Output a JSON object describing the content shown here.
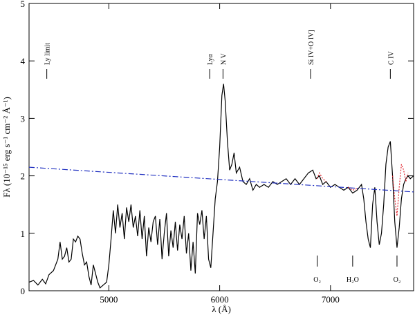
{
  "chart_data": {
    "type": "line",
    "xlabel": "λ (Å)",
    "ylabel": "Fλ (10⁻¹⁵ erg s⁻¹ cm⁻² Å⁻¹)",
    "xlim": [
      4280,
      7750
    ],
    "ylim": [
      0,
      5
    ],
    "xticks": [
      5000,
      6000,
      7000
    ],
    "yticks": [
      0,
      1,
      2,
      3,
      4,
      5
    ],
    "series": [
      {
        "color": "#000000",
        "style": "solid",
        "x": [
          4280,
          4320,
          4360,
          4400,
          4430,
          4460,
          4500,
          4520,
          4540,
          4560,
          4580,
          4600,
          4620,
          4640,
          4660,
          4680,
          4700,
          4720,
          4740,
          4760,
          4780,
          4800,
          4820,
          4840,
          4860,
          4880,
          4900,
          4920,
          4950,
          4980,
          5000,
          5020,
          5040,
          5060,
          5080,
          5100,
          5120,
          5140,
          5160,
          5180,
          5200,
          5220,
          5240,
          5260,
          5280,
          5300,
          5320,
          5340,
          5360,
          5380,
          5400,
          5420,
          5440,
          5460,
          5480,
          5500,
          5520,
          5540,
          5560,
          5580,
          5600,
          5620,
          5640,
          5660,
          5680,
          5700,
          5720,
          5740,
          5760,
          5780,
          5800,
          5820,
          5840,
          5860,
          5880,
          5900,
          5920,
          5940,
          5960,
          5980,
          6000,
          6020,
          6035,
          6050,
          6070,
          6090,
          6110,
          6130,
          6150,
          6180,
          6210,
          6240,
          6270,
          6300,
          6330,
          6360,
          6400,
          6440,
          6480,
          6520,
          6560,
          6600,
          6640,
          6680,
          6720,
          6760,
          6800,
          6840,
          6870,
          6900,
          6930,
          6960,
          7000,
          7040,
          7080,
          7120,
          7160,
          7200,
          7240,
          7280,
          7300,
          7320,
          7340,
          7360,
          7380,
          7400,
          7420,
          7440,
          7460,
          7480,
          7500,
          7520,
          7540,
          7560,
          7580,
          7600,
          7620,
          7640,
          7660,
          7680,
          7700,
          7720,
          7750
        ],
        "values": [
          0.15,
          0.18,
          0.1,
          0.2,
          0.12,
          0.28,
          0.35,
          0.45,
          0.55,
          0.85,
          0.55,
          0.6,
          0.75,
          0.5,
          0.55,
          0.9,
          0.85,
          0.95,
          0.9,
          0.65,
          0.45,
          0.5,
          0.25,
          0.1,
          0.45,
          0.3,
          0.15,
          0.05,
          0.1,
          0.15,
          0.45,
          0.9,
          1.4,
          1.0,
          1.5,
          1.1,
          1.35,
          0.9,
          1.45,
          1.2,
          1.5,
          1.1,
          1.3,
          0.95,
          1.4,
          0.9,
          1.3,
          0.6,
          1.1,
          0.85,
          1.2,
          1.3,
          0.8,
          1.25,
          0.55,
          1.0,
          1.35,
          0.6,
          1.05,
          0.75,
          1.2,
          0.7,
          1.15,
          0.9,
          1.3,
          0.65,
          1.0,
          0.35,
          0.85,
          0.3,
          1.35,
          1.15,
          1.4,
          0.9,
          1.3,
          0.55,
          0.4,
          1.0,
          1.6,
          1.9,
          2.5,
          3.4,
          3.6,
          3.3,
          2.6,
          2.1,
          2.2,
          2.4,
          2.05,
          2.15,
          1.9,
          1.85,
          1.95,
          1.75,
          1.85,
          1.8,
          1.85,
          1.8,
          1.9,
          1.85,
          1.9,
          1.95,
          1.85,
          1.95,
          1.85,
          1.95,
          2.05,
          2.1,
          1.95,
          2.0,
          1.85,
          1.9,
          1.8,
          1.85,
          1.8,
          1.75,
          1.8,
          1.7,
          1.75,
          1.85,
          1.6,
          1.2,
          0.9,
          0.75,
          1.5,
          1.8,
          1.2,
          0.8,
          1.0,
          1.5,
          2.2,
          2.5,
          2.6,
          2.0,
          1.2,
          0.75,
          1.1,
          1.6,
          1.85,
          1.95,
          2.0,
          1.95,
          2.0
        ]
      },
      {
        "color": "#e0202a",
        "style": "dotted",
        "x": [
          6880,
          6900,
          6930,
          6960,
          7000,
          7160,
          7200,
          7240,
          7400,
          7560,
          7580,
          7600,
          7620,
          7640,
          7660,
          7680,
          7700
        ],
        "values": [
          1.95,
          2.05,
          1.95,
          1.9,
          null,
          1.8,
          1.75,
          1.78,
          null,
          2.0,
          1.6,
          1.3,
          1.8,
          2.2,
          2.1,
          1.9,
          2.05
        ]
      },
      {
        "color": "#2030c0",
        "style": "dashdot",
        "x": [
          4280,
          7750
        ],
        "values": [
          2.15,
          1.72
        ]
      }
    ],
    "top_annotations": [
      {
        "text": "Ly limit",
        "x": 4440
      },
      {
        "text": "Lyα",
        "x": 5910
      },
      {
        "text": "N V",
        "x": 6030
      },
      {
        "text": "Si IV+O IV]",
        "x": 6820
      },
      {
        "text": "C IV",
        "x": 7540
      }
    ],
    "bottom_annotations": [
      {
        "text": "O₂",
        "x": 6880
      },
      {
        "text": "H₂O",
        "x": 7200
      },
      {
        "text": "O₂",
        "x": 7600
      }
    ]
  }
}
